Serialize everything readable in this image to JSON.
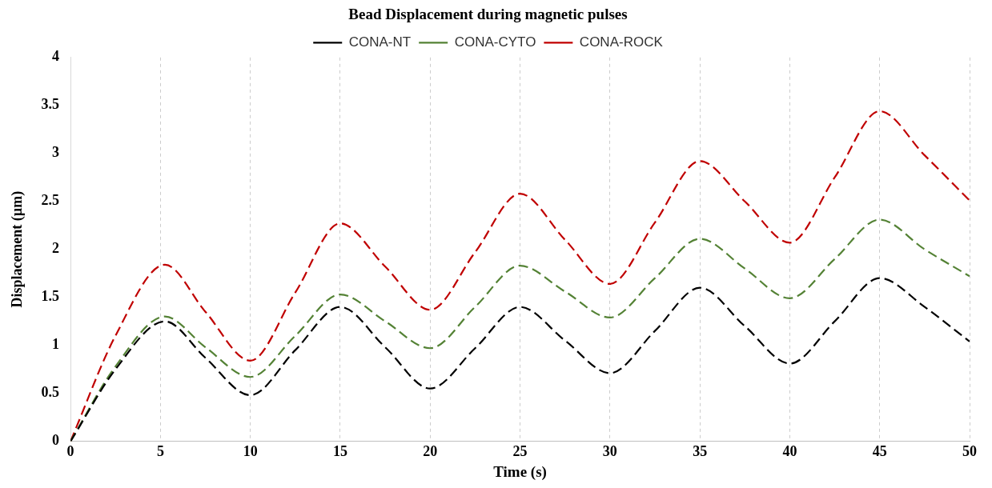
{
  "chart_data": {
    "type": "line",
    "title": "Bead Displacement during magnetic pulses",
    "xlabel": "Time (s)",
    "ylabel": "Displacement (µm)",
    "x": [
      0,
      2.5,
      5.25,
      7.5,
      10,
      12.5,
      15,
      17.5,
      20,
      22.5,
      25,
      27.5,
      30,
      32.5,
      35,
      37.5,
      40,
      42.5,
      45,
      47.5,
      50
    ],
    "series": [
      {
        "name": "CONA-NT",
        "color": "#000000",
        "values": [
          0,
          0.75,
          1.25,
          0.87,
          0.48,
          0.95,
          1.4,
          0.98,
          0.55,
          0.97,
          1.4,
          1.05,
          0.71,
          1.15,
          1.6,
          1.2,
          0.81,
          1.25,
          1.7,
          1.4,
          1.04
        ]
      },
      {
        "name": "CONA-CYTO",
        "color": "#548235",
        "values": [
          0,
          0.78,
          1.3,
          0.98,
          0.67,
          1.1,
          1.53,
          1.25,
          0.97,
          1.4,
          1.83,
          1.56,
          1.29,
          1.7,
          2.11,
          1.8,
          1.49,
          1.9,
          2.31,
          2.0,
          1.72
        ]
      },
      {
        "name": "CONA-ROCK",
        "color": "#c00000",
        "values": [
          0,
          1.1,
          1.84,
          1.35,
          0.84,
          1.55,
          2.27,
          1.82,
          1.37,
          1.97,
          2.58,
          2.1,
          1.64,
          2.28,
          2.92,
          2.5,
          2.07,
          2.75,
          3.44,
          2.98,
          2.51
        ]
      }
    ],
    "xlim": [
      0,
      50
    ],
    "xticks": [
      0,
      5,
      10,
      15,
      20,
      25,
      30,
      35,
      40,
      45,
      50
    ],
    "ylim": [
      0,
      4
    ],
    "yticks": [
      0,
      0.5,
      1,
      1.5,
      2,
      2.5,
      3,
      3.5,
      4
    ],
    "grid": "x",
    "legend": "top",
    "marker": "none",
    "line_style": "dashed"
  }
}
